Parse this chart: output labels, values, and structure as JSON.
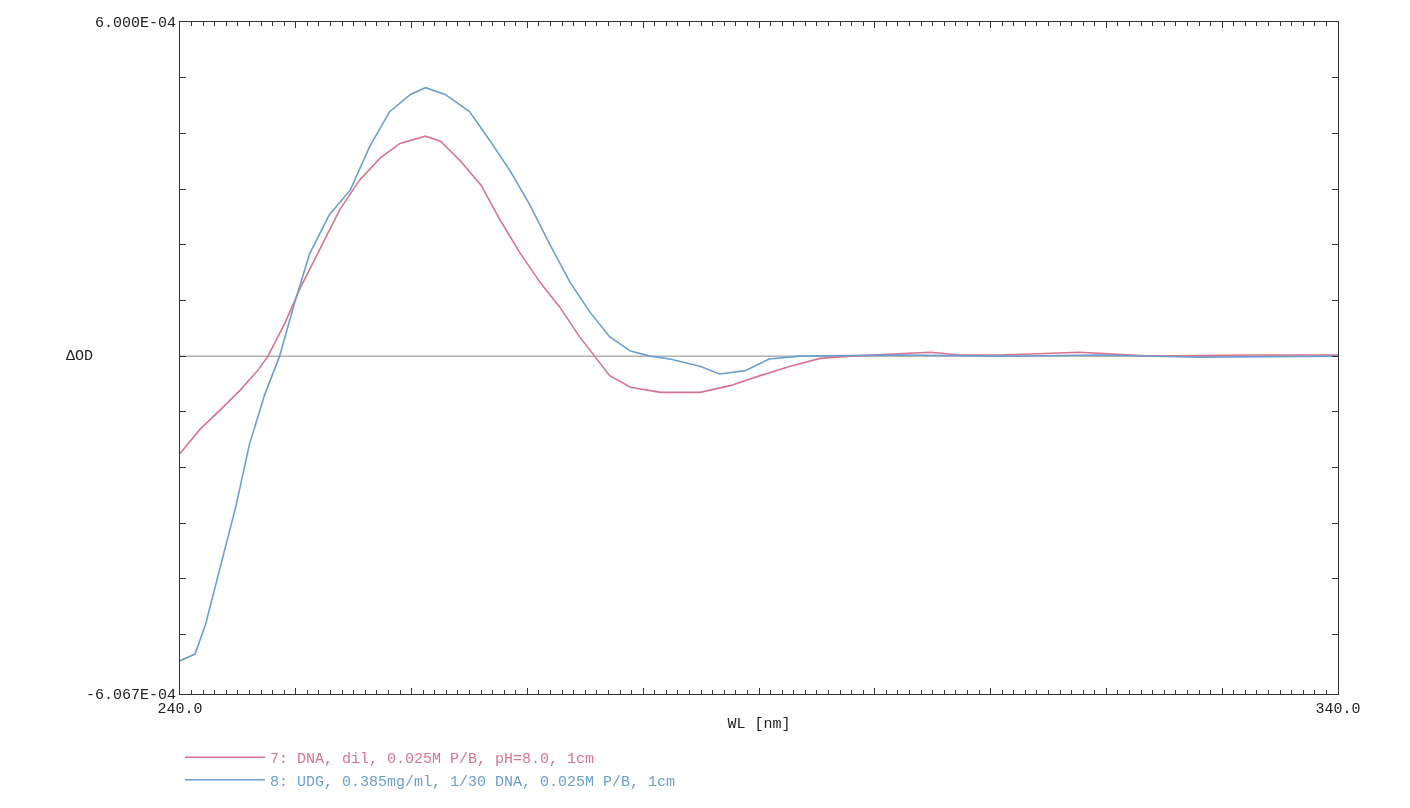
{
  "chart_data": {
    "type": "line",
    "xlabel": "WL [nm]",
    "ylabel": "ΔOD",
    "xlim": [
      240,
      340
    ],
    "ylim": [
      -0.0006067,
      0.0006
    ],
    "xticks": [
      {
        "value": 240,
        "label": "240.0"
      },
      {
        "value": 250,
        "label": null
      },
      {
        "value": 260,
        "label": null
      },
      {
        "value": 270,
        "label": null
      },
      {
        "value": 280,
        "label": null
      },
      {
        "value": 290,
        "label": null
      },
      {
        "value": 300,
        "label": null
      },
      {
        "value": 310,
        "label": null
      },
      {
        "value": 320,
        "label": null
      },
      {
        "value": 330,
        "label": null
      },
      {
        "value": 340,
        "label": "340.0"
      }
    ],
    "yticks": [
      {
        "value": 0.0006,
        "label": "6.000E-04"
      },
      {
        "value": 0.0005,
        "label": null
      },
      {
        "value": 0.0004,
        "label": null
      },
      {
        "value": 0.0003,
        "label": null
      },
      {
        "value": 0.0002,
        "label": null
      },
      {
        "value": 0.0001,
        "label": null
      },
      {
        "value": 0,
        "label": null
      },
      {
        "value": -0.0001,
        "label": null
      },
      {
        "value": -0.0002,
        "label": null
      },
      {
        "value": -0.0003,
        "label": null
      },
      {
        "value": -0.0004,
        "label": null
      },
      {
        "value": -0.0005,
        "label": null
      },
      {
        "value": -0.0006067,
        "label": "-6.067E-04"
      }
    ],
    "grid": false,
    "legend": "bottom",
    "marker": "none",
    "line_style": "solid",
    "ref_lines": [
      {
        "axis": "y",
        "value": 0,
        "label": null,
        "color": "#888888"
      }
    ],
    "series": [
      {
        "name": "7: DNA, dil, 0.025M P/B, pH=8.0, 1cm",
        "color": "#d9748f",
        "x": [
          240,
          241.7,
          243.5,
          245.2,
          246.7,
          247.6,
          249.1,
          250.4,
          252.1,
          253.8,
          255.5,
          257.3,
          259.0,
          261.2,
          262.5,
          264.2,
          266.0,
          267.6,
          269.4,
          271.1,
          272.8,
          274.5,
          275.8,
          277.1,
          278.9,
          281.5,
          284.9,
          287.5,
          290.1,
          292.7,
          295.3,
          297.9,
          304.8,
          307.4,
          310.8,
          317.7,
          323.8,
          332.4,
          340
        ],
        "values": [
          -0.000175,
          -0.000132,
          -9.6e-05,
          -6.1e-05,
          -2.6e-05,
          0,
          6.1e-05,
          0.000123,
          0.000193,
          0.000263,
          0.000316,
          0.000356,
          0.000382,
          0.000395,
          0.000386,
          0.000351,
          0.000307,
          0.000246,
          0.000184,
          0.000132,
          8.8e-05,
          3.5e-05,
          0,
          -3.5e-05,
          -5.6e-05,
          -6.5e-05,
          -6.5e-05,
          -5.3e-05,
          -3.5e-05,
          -1.8e-05,
          -4e-06,
          0,
          7e-06,
          2e-06,
          2e-06,
          7e-06,
          0,
          2e-06,
          2e-06
        ]
      },
      {
        "name": "8: UDG, 0.385mg/ml, 1/30 DNA, 0.025M P/B, 1cm",
        "color": "#6b9fd1",
        "x": [
          240,
          241.3,
          242.2,
          243.5,
          244.8,
          246.0,
          247.3,
          248.6,
          249.9,
          251.2,
          252.9,
          254.7,
          256.4,
          258.1,
          259.9,
          261.2,
          262.9,
          265.0,
          266.8,
          268.5,
          270.2,
          271.9,
          273.7,
          275.4,
          277.1,
          278.9,
          280.6,
          282.3,
          284.9,
          286.6,
          288.8,
          290.9,
          293.5,
          302.2,
          310.8,
          319.4,
          328.1,
          340
        ],
        "values": [
          -0.000547,
          -0.000535,
          -0.000482,
          -0.000377,
          -0.000272,
          -0.000158,
          -7e-05,
          0,
          9.6e-05,
          0.000184,
          0.000254,
          0.000298,
          0.000377,
          0.000439,
          0.00047,
          0.000482,
          0.00047,
          0.000439,
          0.000386,
          0.000333,
          0.000272,
          0.000202,
          0.000132,
          7.9e-05,
          3.5e-05,
          9e-06,
          0,
          -5e-06,
          -1.8e-05,
          -3.2e-05,
          -2.6e-05,
          -5e-06,
          0,
          2e-06,
          0,
          2e-06,
          -2e-06,
          0
        ]
      }
    ]
  }
}
